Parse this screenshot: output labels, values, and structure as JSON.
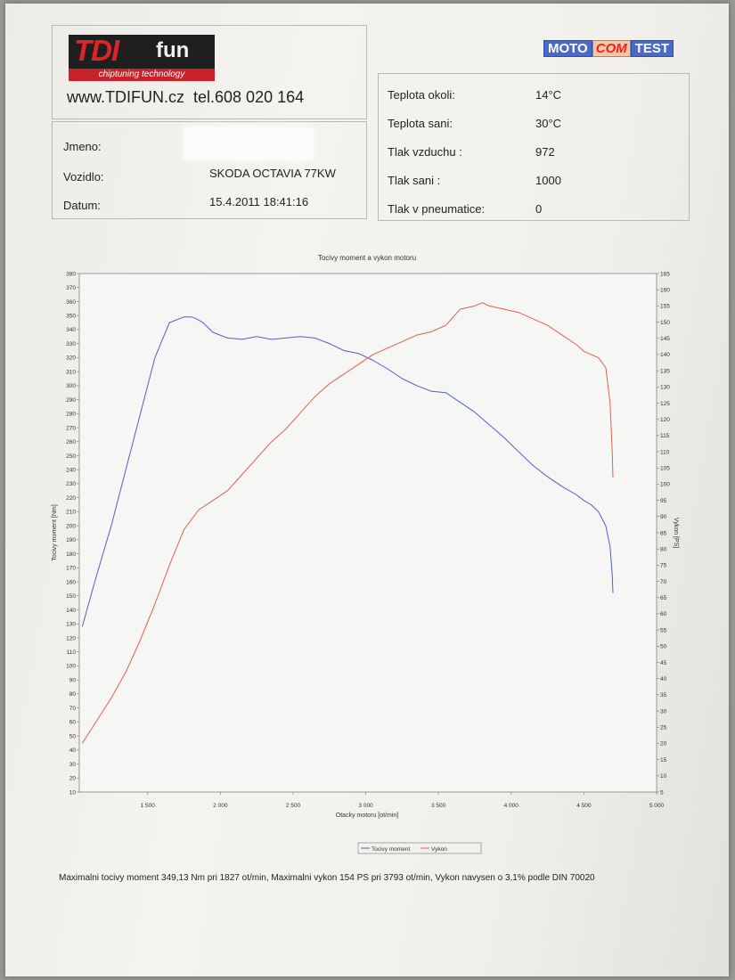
{
  "header": {
    "logo_tdi": "TDI",
    "logo_fun": "fun",
    "logo_sub": "chiptuning technology",
    "website": "www.TDIFUN.cz",
    "phone": "tel.608 020 164",
    "moto_left": "MOTO",
    "moto_mid": "COM",
    "moto_right": "TEST"
  },
  "vehicle": {
    "name_label": "Jmeno:",
    "name_value": "",
    "vehicle_label": "Vozidlo:",
    "vehicle_value": "SKODA OCTAVIA 77KW",
    "date_label": "Datum:",
    "date_value": "15.4.2011 18:41:16"
  },
  "conditions": [
    {
      "label": "Teplota okoli:",
      "value": "14°C"
    },
    {
      "label": "Teplota sani:",
      "value": "30°C"
    },
    {
      "label": "Tlak vzduchu :",
      "value": "972"
    },
    {
      "label": "Tlak sani :",
      "value": "1000"
    },
    {
      "label": "Tlak v pneumatice:",
      "value": "0"
    }
  ],
  "chart_data": {
    "type": "line",
    "title": "Tocivy moment a vykon motoru",
    "xlabel": "Otacky motoru [ot/min]",
    "ylabel_left": "Tocivy moment [Nm]",
    "ylabel_right": "Vykon [PS]",
    "xlim": [
      1030,
      5000
    ],
    "ylim_left": [
      10,
      380
    ],
    "ylim_right": [
      5,
      165
    ],
    "x_ticks": [
      1500,
      2000,
      2500,
      3000,
      3500,
      4000,
      4500,
      5000
    ],
    "x_tick_labels": [
      "1 500",
      "2 000",
      "2 500",
      "3 000",
      "3 500",
      "4 000",
      "4 500",
      "5 000"
    ],
    "y_left_ticks": [
      10,
      20,
      30,
      40,
      50,
      60,
      70,
      80,
      90,
      100,
      110,
      120,
      130,
      140,
      150,
      160,
      170,
      180,
      190,
      200,
      210,
      220,
      230,
      240,
      250,
      260,
      270,
      280,
      290,
      300,
      310,
      320,
      330,
      340,
      350,
      360,
      370,
      380
    ],
    "y_right_ticks": [
      5,
      10,
      15,
      20,
      25,
      30,
      35,
      40,
      45,
      50,
      55,
      60,
      65,
      70,
      75,
      80,
      85,
      90,
      95,
      100,
      105,
      110,
      115,
      120,
      125,
      130,
      135,
      140,
      145,
      150,
      155,
      160,
      165
    ],
    "legend_position": "bottom",
    "series": [
      {
        "name": "Tocivy moment",
        "color": "#5060c8",
        "axis": "left",
        "x": [
          1050,
          1150,
          1250,
          1350,
          1450,
          1550,
          1650,
          1750,
          1800,
          1830,
          1880,
          1950,
          2050,
          2150,
          2250,
          2350,
          2450,
          2550,
          2650,
          2750,
          2850,
          2950,
          3050,
          3150,
          3250,
          3350,
          3450,
          3550,
          3650,
          3750,
          3850,
          3950,
          4050,
          4150,
          4250,
          4350,
          4450,
          4500,
          4550,
          4600,
          4650,
          4680,
          4695,
          4700
        ],
        "values": [
          128,
          165,
          200,
          240,
          280,
          320,
          345,
          349,
          349,
          348,
          345,
          338,
          334,
          333,
          335,
          333,
          334,
          335,
          334,
          330,
          325,
          323,
          318,
          312,
          305,
          300,
          296,
          295,
          288,
          281,
          272,
          263,
          253,
          243,
          235,
          228,
          222,
          218,
          215,
          210,
          200,
          185,
          165,
          152
        ]
      },
      {
        "name": "Vykon",
        "color": "#e06050",
        "axis": "right",
        "x": [
          1050,
          1150,
          1250,
          1350,
          1450,
          1550,
          1650,
          1750,
          1850,
          1950,
          2050,
          2150,
          2250,
          2350,
          2450,
          2550,
          2650,
          2750,
          2850,
          2950,
          3050,
          3150,
          3250,
          3350,
          3450,
          3550,
          3650,
          3750,
          3800,
          3850,
          3950,
          4050,
          4150,
          4250,
          4350,
          4450,
          4500,
          4550,
          4600,
          4650,
          4680,
          4695,
          4700
        ],
        "values": [
          20,
          27,
          34,
          42,
          52,
          63,
          75,
          86,
          92,
          95,
          98,
          103,
          108,
          113,
          117,
          122,
          127,
          131,
          134,
          137,
          140,
          142,
          144,
          146,
          147,
          149,
          154,
          155,
          156,
          155,
          154,
          153,
          151,
          149,
          146,
          143,
          141,
          140,
          139,
          136,
          125,
          110,
          102
        ]
      }
    ]
  },
  "footer": {
    "text": "Maximalni tocivy moment 349,13 Nm pri 1827 ot/min,  Maximalni vykon 154 PS pri 3793 ot/min,  Vykon navysen o 3,1% podle DIN 70020"
  }
}
